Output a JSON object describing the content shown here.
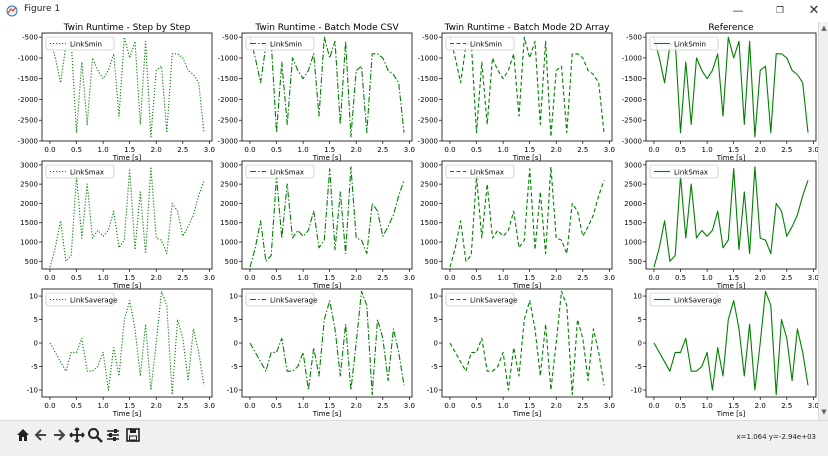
{
  "window": {
    "title": "Figure 1",
    "minimize_label": "—",
    "maximize_label": "❐",
    "close_label": "✕"
  },
  "toolbar": {
    "buttons": [
      "home-icon",
      "back-arrow-icon",
      "forward-arrow-icon",
      "pan-icon",
      "zoom-icon",
      "configure-subplots-icon",
      "save-icon"
    ],
    "coords_text": "x=1.064 y=-2.94e+03"
  },
  "chart_data": {
    "type": "line",
    "x": [
      0.0,
      0.1,
      0.2,
      0.3,
      0.4,
      0.5,
      0.6,
      0.7,
      0.8,
      0.9,
      1.0,
      1.1,
      1.2,
      1.3,
      1.4,
      1.5,
      1.6,
      1.7,
      1.8,
      1.9,
      2.0,
      2.1,
      2.2,
      2.3,
      2.4,
      2.5,
      2.6,
      2.7,
      2.8,
      2.9
    ],
    "xlabel": "Time [s]",
    "xticks": [
      "0.0",
      "0.5",
      "1.0",
      "1.5",
      "2.0",
      "2.5",
      "3.0"
    ],
    "xlim": [
      -0.15,
      3.05
    ],
    "color": "#008000",
    "columns": [
      {
        "title": "Twin Runtime - Step by Step",
        "linestyle": "dotted"
      },
      {
        "title": "Twin Runtime - Batch Mode CSV",
        "linestyle": "dashdot"
      },
      {
        "title": "Twin Runtime - Batch Mode 2D Array",
        "linestyle": "dashed"
      },
      {
        "title": "Reference",
        "linestyle": "solid"
      }
    ],
    "rows": [
      {
        "legend": "LinkSmin",
        "ylim": [
          -3000,
          -400
        ],
        "yticks": [
          "-500",
          "-1000",
          "-1500",
          "-2000",
          "-2500",
          "-3000"
        ],
        "ytick_values": [
          -500,
          -1000,
          -1500,
          -2000,
          -2500,
          -3000
        ],
        "values": [
          -500,
          -1000,
          -1600,
          -700,
          -600,
          -2800,
          -1100,
          -2600,
          -1000,
          -1300,
          -1500,
          -1300,
          -900,
          -2400,
          -500,
          -1000,
          -600,
          -2600,
          -600,
          -2900,
          -1300,
          -1200,
          -2800,
          -900,
          -900,
          -1000,
          -1300,
          -1400,
          -1600,
          -2800
        ]
      },
      {
        "legend": "LinkSmax",
        "ylim": [
          300,
          3100
        ],
        "yticks": [
          "3000",
          "2500",
          "2000",
          "1500",
          "1000",
          "500"
        ],
        "ytick_values": [
          3000,
          2500,
          2000,
          1500,
          1000,
          500
        ],
        "values": [
          350,
          850,
          1550,
          500,
          650,
          2700,
          1100,
          2500,
          1100,
          1300,
          1150,
          1300,
          1800,
          850,
          1050,
          2900,
          800,
          2300,
          700,
          2950,
          1100,
          1050,
          700,
          2000,
          1800,
          1150,
          1400,
          1700,
          2200,
          2600
        ]
      },
      {
        "legend": "LinkSaverage",
        "ylim": [
          -11.5,
          11.5
        ],
        "yticks": [
          "10",
          "5",
          "0",
          "-5",
          "-10"
        ],
        "ytick_values": [
          10,
          5,
          0,
          -5,
          -10
        ],
        "values": [
          0,
          -2,
          -4,
          -6,
          -2,
          -2,
          1,
          -6,
          -6,
          -5,
          -2,
          -10,
          -1,
          -7,
          5,
          9,
          3,
          -7,
          4,
          -10,
          0,
          11,
          8,
          -11,
          5,
          1,
          -8,
          3,
          -2,
          -9
        ]
      }
    ]
  }
}
